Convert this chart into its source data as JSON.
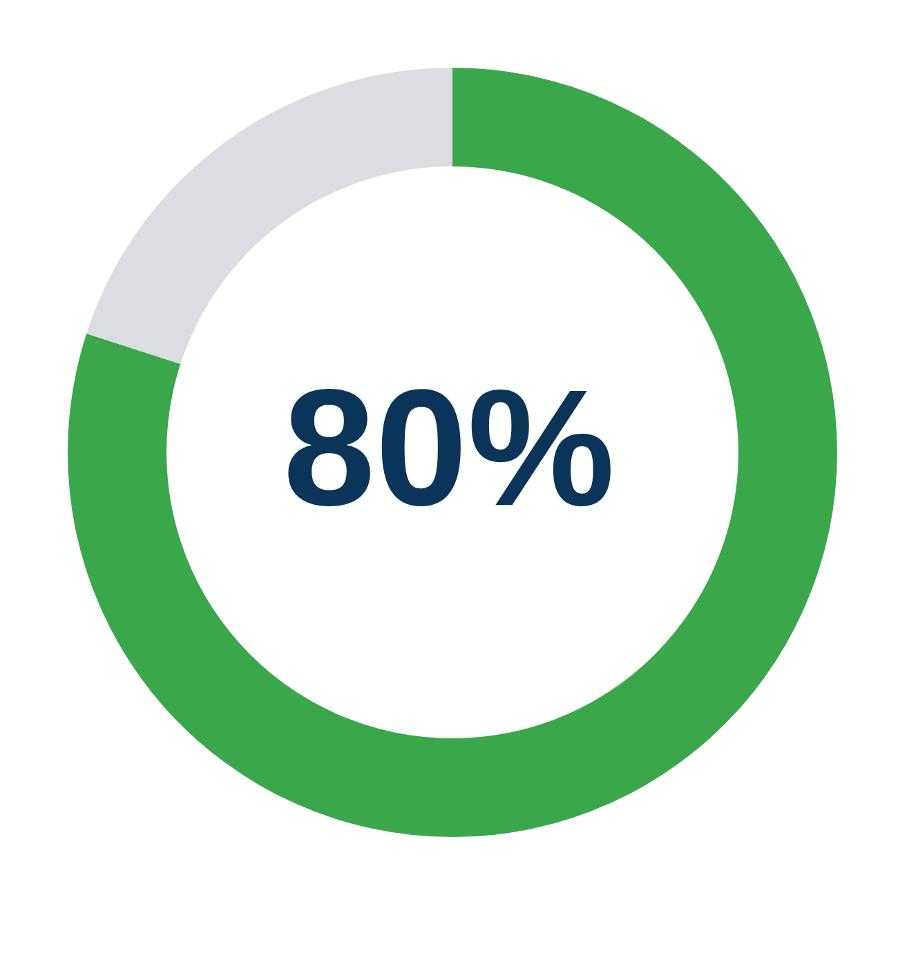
{
  "chart_data": {
    "type": "donut",
    "categories": [
      null,
      null
    ],
    "values": [
      80,
      20
    ],
    "colors": [
      "#3aa84a",
      "#dcdde2"
    ],
    "annotations": [
      "80%"
    ],
    "legend": false
  }
}
